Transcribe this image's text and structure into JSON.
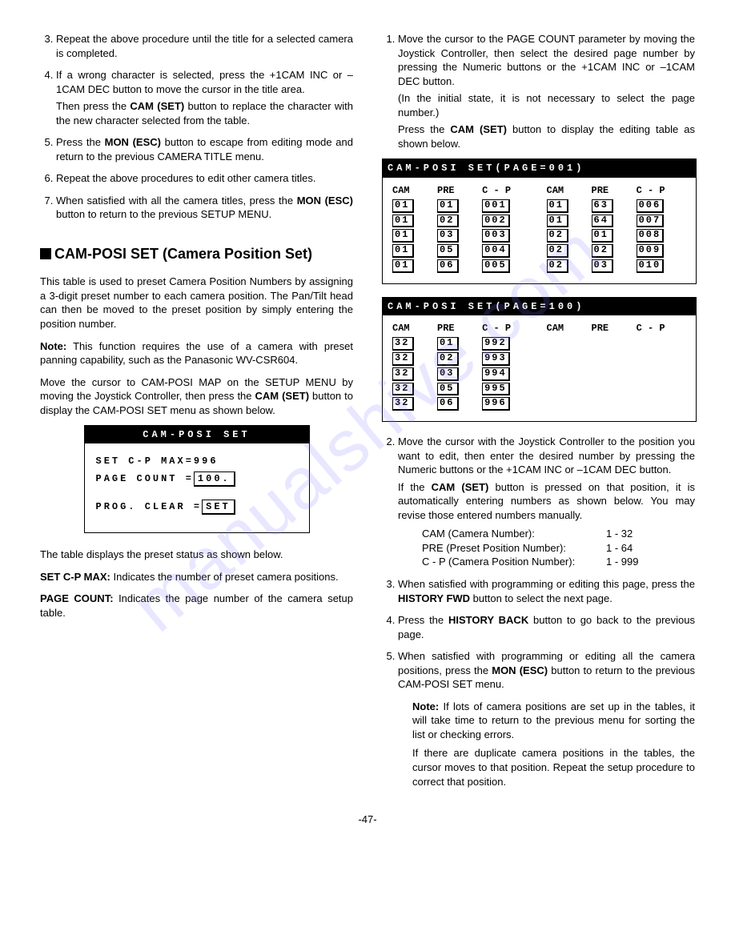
{
  "watermark": "manualshive.com",
  "pagenum": "-47-",
  "left": {
    "items": [
      {
        "n": "3",
        "text": "Repeat the above procedure until the title for a selected camera is completed."
      },
      {
        "n": "4",
        "text": "If a wrong character is selected, press the +1CAM INC or –1CAM DEC button to move the cursor in the title area.",
        "cont": "Then press the <b>CAM (SET)</b> button to replace the character with the new character selected from the table."
      },
      {
        "n": "5",
        "text": "Press the <b>MON (ESC)</b> button to escape from editing mode and return to the previous CAMERA TITLE menu."
      },
      {
        "n": "6",
        "text": "Repeat the above procedures to edit other camera titles."
      },
      {
        "n": "7",
        "text": "When satisfied with all the camera titles, press the <b>MON (ESC)</b> button to return to the previous SETUP MENU."
      }
    ],
    "section_title": "CAM-POSI SET (Camera Position Set)",
    "para1": "This table is used to preset Camera Position Numbers by assigning a 3-digit preset number to each camera position. The Pan/Tilt head can then be moved to the preset position by simply entering the position number.",
    "note": "<b>Note:</b> This function requires the use of a camera with preset panning capability, such as the Panasonic WV-CSR604.",
    "para2": "Move the cursor to CAM-POSI MAP on the SETUP MENU by moving the Joystick Controller, then press the <b>CAM (SET)</b> button to display the CAM-POSI SET menu as shown below.",
    "osd_small": {
      "head": "CAM-POSI SET",
      "line1": "SET C-P MAX=996",
      "line2_label": "PAGE COUNT =",
      "line2_val": "100.",
      "line3_label": "PROG. CLEAR =",
      "line3_val": "SET"
    },
    "para3": "The table displays the preset status as shown below.",
    "defs": [
      {
        "k": "SET C-P MAX:",
        "v": "Indicates the number of preset camera positions."
      },
      {
        "k": "PAGE COUNT:",
        "v": "Indicates the page number of the camera setup table."
      }
    ]
  },
  "right": {
    "item1": {
      "text": "Move the cursor to the PAGE COUNT parameter by moving the Joystick Controller, then select the desired page number by pressing the Numeric buttons or the +1CAM INC or –1CAM DEC button.",
      "paren": "(In the initial state, it is not necessary to select the page number.)",
      "cont": "Press the <b>CAM (SET)</b> button to display the editing table as shown below."
    },
    "osd1": {
      "head": "CAM-POSI SET(PAGE=001)",
      "cols": [
        "CAM",
        "PRE",
        "C - P",
        "CAM",
        "PRE",
        "C - P"
      ],
      "left": [
        [
          "01",
          "01",
          "001"
        ],
        [
          "01",
          "02",
          "002"
        ],
        [
          "01",
          "03",
          "003"
        ],
        [
          "01",
          "05",
          "004"
        ],
        [
          "01",
          "06",
          "005"
        ]
      ],
      "right": [
        [
          "01",
          "63",
          "006"
        ],
        [
          "01",
          "64",
          "007"
        ],
        [
          "02",
          "01",
          "008"
        ],
        [
          "02",
          "02",
          "009"
        ],
        [
          "02",
          "03",
          "010"
        ]
      ]
    },
    "osd2": {
      "head": "CAM-POSI SET(PAGE=100)",
      "cols": [
        "CAM",
        "PRE",
        "C - P",
        "CAM",
        "PRE",
        "C - P"
      ],
      "left": [
        [
          "32",
          "01",
          "992"
        ],
        [
          "32",
          "02",
          "993"
        ],
        [
          "32",
          "03",
          "994"
        ],
        [
          "32",
          "05",
          "995"
        ],
        [
          "32",
          "06",
          "996"
        ]
      ]
    },
    "item2": {
      "text": "Move the cursor with the Joystick Controller to the position you want to edit, then enter the desired number by pressing the Numeric buttons or the +1CAM INC or –1CAM DEC button.",
      "cont": "If the <b>CAM (SET)</b> button is pressed on that position, it is automatically entering numbers as shown below. You may revise those entered numbers manually.",
      "vals": [
        {
          "k": "CAM (Camera Number):",
          "v": "1 - 32"
        },
        {
          "k": "PRE (Preset Position Number):",
          "v": "1 - 64"
        },
        {
          "k": "C - P (Camera Position Number):",
          "v": "1 - 999"
        }
      ]
    },
    "items": [
      {
        "n": "3",
        "text": "When satisfied with programming or editing this page, press the <b>HISTORY FWD</b> button to select the next page."
      },
      {
        "n": "4",
        "text": "Press the <b>HISTORY BACK</b> button to go back to the previous page."
      },
      {
        "n": "5",
        "text": "When satisfied with programming or editing all the camera positions, press the <b>MON (ESC)</b> button to return to the previous CAM-POSI SET menu."
      }
    ],
    "note5": {
      "head": "<b>Note:</b> If lots of camera positions are set up in the tables, it will take time to return to the previous menu for sorting the list or checking errors.",
      "cont": "If there are duplicate camera positions in the tables, the cursor moves to that position. Repeat the setup procedure to correct that position."
    }
  }
}
